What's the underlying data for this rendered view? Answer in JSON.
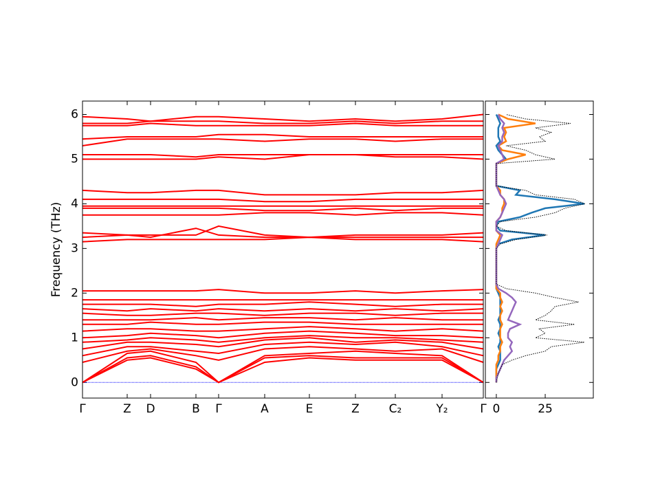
{
  "chart_data": [
    {
      "type": "band",
      "ylabel": "Frequency (THz)",
      "color": "#ff0000",
      "zero_color": "#0000ff",
      "xlim": [
        0,
        5.83
      ],
      "ylim": [
        -0.35,
        6.3
      ],
      "yticks": [
        0,
        1,
        2,
        3,
        4,
        5,
        6
      ],
      "xticks": [
        {
          "value": 0,
          "label": "Γ"
        },
        {
          "value": 0.65,
          "label": "Z"
        },
        {
          "value": 0.99,
          "label": "D"
        },
        {
          "value": 1.65,
          "label": "B"
        },
        {
          "value": 1.98,
          "label": "Γ"
        },
        {
          "value": 2.65,
          "label": "A"
        },
        {
          "value": 3.3,
          "label": "E"
        },
        {
          "value": 3.97,
          "label": "Z"
        },
        {
          "value": 4.55,
          "label": "C₂"
        },
        {
          "value": 5.23,
          "label": "Y₂"
        },
        {
          "value": 5.83,
          "label": "Γ"
        }
      ],
      "x": [
        0,
        0.65,
        0.99,
        1.65,
        1.98,
        2.65,
        3.3,
        3.97,
        4.55,
        5.23,
        5.83
      ],
      "bands": [
        [
          0,
          0.5,
          0.55,
          0.3,
          0,
          0.45,
          0.55,
          0.5,
          0.5,
          0.5,
          0
        ],
        [
          0,
          0.55,
          0.6,
          0.35,
          0,
          0.55,
          0.6,
          0.55,
          0.55,
          0.55,
          0
        ],
        [
          0,
          0.65,
          0.7,
          0.45,
          0,
          0.6,
          0.65,
          0.7,
          0.65,
          0.6,
          0
        ],
        [
          0.45,
          0.7,
          0.75,
          0.6,
          0.5,
          0.75,
          0.8,
          0.75,
          0.7,
          0.75,
          0.45
        ],
        [
          0.6,
          0.8,
          0.8,
          0.7,
          0.65,
          0.85,
          0.9,
          0.85,
          0.9,
          0.8,
          0.6
        ],
        [
          0.75,
          0.9,
          0.9,
          0.85,
          0.8,
          0.95,
          1.0,
          0.9,
          0.95,
          0.9,
          0.75
        ],
        [
          0.9,
          0.95,
          1.0,
          0.95,
          0.9,
          1.0,
          1.05,
          1.0,
          1.0,
          0.95,
          0.9
        ],
        [
          1.0,
          1.05,
          1.1,
          1.05,
          1.0,
          1.1,
          1.15,
          1.1,
          1.05,
          1.05,
          1.0
        ],
        [
          1.15,
          1.2,
          1.2,
          1.15,
          1.15,
          1.2,
          1.25,
          1.2,
          1.15,
          1.2,
          1.15
        ],
        [
          1.3,
          1.3,
          1.35,
          1.3,
          1.3,
          1.35,
          1.35,
          1.3,
          1.3,
          1.3,
          1.3
        ],
        [
          1.4,
          1.4,
          1.4,
          1.45,
          1.4,
          1.45,
          1.45,
          1.4,
          1.45,
          1.4,
          1.4
        ],
        [
          1.55,
          1.5,
          1.5,
          1.55,
          1.55,
          1.5,
          1.55,
          1.55,
          1.5,
          1.55,
          1.55
        ],
        [
          1.65,
          1.6,
          1.65,
          1.6,
          1.65,
          1.6,
          1.65,
          1.6,
          1.65,
          1.6,
          1.65
        ],
        [
          1.75,
          1.75,
          1.75,
          1.7,
          1.75,
          1.75,
          1.8,
          1.75,
          1.7,
          1.75,
          1.75
        ],
        [
          1.85,
          1.85,
          1.85,
          1.85,
          1.85,
          1.85,
          1.85,
          1.85,
          1.85,
          1.85,
          1.85
        ],
        [
          2.05,
          2.05,
          2.05,
          2.05,
          2.08,
          2.0,
          2.0,
          2.05,
          2.0,
          2.05,
          2.08
        ],
        [
          3.15,
          3.2,
          3.2,
          3.2,
          3.2,
          3.2,
          3.25,
          3.2,
          3.2,
          3.2,
          3.15
        ],
        [
          3.25,
          3.3,
          3.25,
          3.45,
          3.3,
          3.25,
          3.25,
          3.25,
          3.25,
          3.25,
          3.25
        ],
        [
          3.35,
          3.3,
          3.3,
          3.3,
          3.5,
          3.3,
          3.25,
          3.3,
          3.3,
          3.3,
          3.35
        ],
        [
          3.75,
          3.75,
          3.75,
          3.75,
          3.75,
          3.8,
          3.8,
          3.75,
          3.8,
          3.8,
          3.75
        ],
        [
          3.9,
          3.9,
          3.9,
          3.9,
          3.9,
          3.85,
          3.85,
          3.9,
          3.85,
          3.9,
          3.9
        ],
        [
          3.95,
          3.95,
          3.95,
          3.95,
          3.95,
          3.95,
          3.95,
          3.95,
          3.95,
          3.95,
          3.95
        ],
        [
          4.1,
          4.1,
          4.1,
          4.1,
          4.1,
          4.05,
          4.05,
          4.1,
          4.1,
          4.1,
          4.1
        ],
        [
          4.3,
          4.25,
          4.25,
          4.3,
          4.3,
          4.2,
          4.2,
          4.2,
          4.25,
          4.25,
          4.3
        ],
        [
          5.0,
          5.0,
          5.0,
          5.0,
          5.05,
          5.0,
          5.1,
          5.1,
          5.05,
          5.05,
          5.0
        ],
        [
          5.1,
          5.1,
          5.1,
          5.05,
          5.1,
          5.1,
          5.1,
          5.1,
          5.1,
          5.1,
          5.1
        ],
        [
          5.3,
          5.45,
          5.45,
          5.45,
          5.45,
          5.4,
          5.45,
          5.45,
          5.4,
          5.45,
          5.45
        ],
        [
          5.45,
          5.5,
          5.5,
          5.5,
          5.55,
          5.55,
          5.5,
          5.5,
          5.5,
          5.5,
          5.5
        ],
        [
          5.75,
          5.75,
          5.8,
          5.75,
          5.75,
          5.75,
          5.75,
          5.8,
          5.75,
          5.75,
          5.75
        ],
        [
          5.8,
          5.8,
          5.85,
          5.85,
          5.85,
          5.8,
          5.8,
          5.85,
          5.8,
          5.85,
          5.85
        ],
        [
          5.95,
          5.9,
          5.85,
          5.95,
          5.95,
          5.9,
          5.85,
          5.9,
          5.85,
          5.9,
          6.0
        ]
      ]
    },
    {
      "type": "dos",
      "xlim": [
        -5.6,
        49.6
      ],
      "xticks": [
        0,
        25
      ],
      "ylim": [
        -0.35,
        6.3
      ],
      "yticks": [
        0,
        1,
        2,
        3,
        4,
        5,
        6
      ],
      "frequency": [
        0,
        0.1,
        0.2,
        0.3,
        0.4,
        0.5,
        0.6,
        0.7,
        0.8,
        0.9,
        1.0,
        1.1,
        1.2,
        1.3,
        1.4,
        1.5,
        1.6,
        1.7,
        1.8,
        1.9,
        2.0,
        2.1,
        2.2,
        2.3,
        2.4,
        2.5,
        2.6,
        2.7,
        2.8,
        2.9,
        3.0,
        3.1,
        3.2,
        3.3,
        3.4,
        3.5,
        3.6,
        3.7,
        3.8,
        3.9,
        4.0,
        4.1,
        4.2,
        4.3,
        4.4,
        4.5,
        4.6,
        4.7,
        4.8,
        4.9,
        5.0,
        5.1,
        5.2,
        5.3,
        5.4,
        5.5,
        5.6,
        5.7,
        5.8,
        5.9,
        6.0
      ],
      "total": {
        "color": "#000000",
        "values": [
          0,
          0.5,
          1,
          2,
          3,
          8,
          15,
          25,
          28,
          45,
          20,
          25,
          22,
          40,
          20,
          25,
          28,
          30,
          42,
          30,
          20,
          5,
          0,
          0,
          0,
          0,
          0,
          0,
          0,
          0,
          0,
          2,
          10,
          26,
          5,
          0,
          2,
          20,
          30,
          35,
          45,
          40,
          20,
          15,
          0,
          0,
          0,
          0,
          0,
          0,
          30,
          20,
          15,
          5,
          25,
          22,
          28,
          20,
          38,
          15,
          5
        ]
      },
      "projected": [
        {
          "color": "#1f77b4",
          "values": [
            0,
            0,
            0,
            0,
            1,
            2,
            2,
            2,
            1,
            2,
            2,
            1,
            2,
            2,
            1,
            2,
            2,
            2,
            2,
            2,
            1,
            0,
            0,
            0,
            0,
            0,
            0,
            0,
            0,
            0,
            0,
            1,
            8,
            25,
            2,
            0,
            1,
            12,
            18,
            25,
            45,
            30,
            10,
            12,
            0,
            0,
            0,
            0,
            0,
            0,
            5,
            3,
            1,
            0,
            2,
            1,
            1,
            1,
            2,
            1,
            0
          ]
        },
        {
          "color": "#ff7f0e",
          "values": [
            0,
            0,
            0,
            0,
            0,
            1,
            1,
            2,
            2,
            3,
            2,
            2,
            2,
            3,
            2,
            2,
            3,
            2,
            3,
            2,
            2,
            0,
            0,
            0,
            0,
            0,
            0,
            0,
            0,
            0,
            0,
            0,
            1,
            2,
            0,
            0,
            0,
            2,
            3,
            3,
            4,
            4,
            2,
            2,
            0,
            0,
            0,
            0,
            0,
            0,
            6,
            15,
            3,
            1,
            5,
            4,
            5,
            4,
            20,
            6,
            1
          ]
        },
        {
          "color": "#9467bd",
          "values": [
            0,
            0,
            1,
            2,
            3,
            4,
            6,
            8,
            7,
            8,
            6,
            6,
            7,
            12,
            6,
            7,
            8,
            9,
            10,
            8,
            5,
            1,
            0,
            0,
            0,
            0,
            0,
            0,
            0,
            0,
            0,
            1,
            2,
            3,
            0,
            0,
            0,
            2,
            3,
            4,
            5,
            4,
            2,
            1,
            0,
            0,
            0,
            0,
            0,
            0,
            4,
            3,
            2,
            1,
            3,
            3,
            4,
            3,
            4,
            2,
            1
          ]
        }
      ]
    }
  ]
}
